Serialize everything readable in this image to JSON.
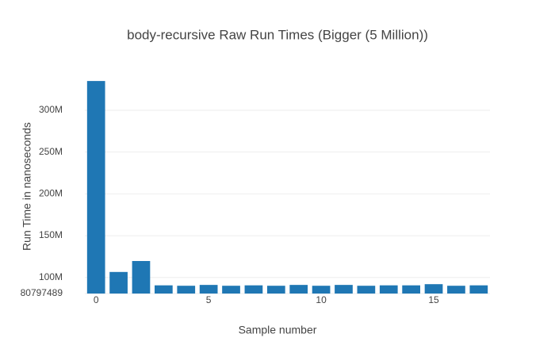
{
  "chart_data": {
    "type": "bar",
    "title": "body-recursive Raw Run Times (Bigger (5 Million))",
    "x_label": "Sample number",
    "y_label": "Run Time in nanoseconds",
    "x": [
      0,
      1,
      2,
      3,
      4,
      5,
      6,
      7,
      8,
      9,
      10,
      11,
      12,
      13,
      14,
      15,
      16,
      17
    ],
    "values": [
      335000000,
      106600000,
      119700000,
      90600000,
      90100000,
      91100000,
      90100000,
      90600000,
      90100000,
      91100000,
      90100000,
      91100000,
      90100000,
      90600000,
      90600000,
      92000000,
      90100000,
      90600000
    ],
    "color": "#1f77b4",
    "xlim": [
      -0.5,
      17.5
    ],
    "xticks": [
      0,
      5,
      10,
      15
    ],
    "ylim": [
      80797489,
      337000000
    ],
    "yticks": [
      80797489,
      {
        "value": 100000000,
        "label": "100M"
      },
      {
        "value": 150000000,
        "label": "150M"
      },
      {
        "value": 200000000,
        "label": "200M"
      },
      {
        "value": 250000000,
        "label": "250M"
      },
      {
        "value": 300000000,
        "label": "300M"
      }
    ],
    "grid": true
  }
}
